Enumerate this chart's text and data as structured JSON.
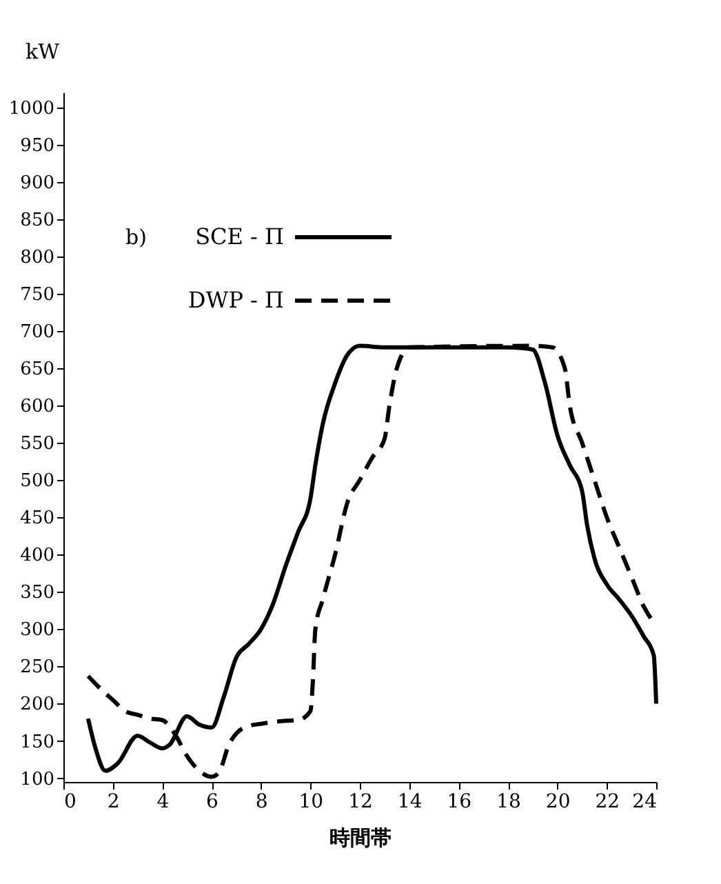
{
  "chart_data": {
    "type": "line",
    "xlabel": "時間帯",
    "ylabel": "kW",
    "annotations": [
      "b)"
    ],
    "xlim": [
      0,
      24
    ],
    "xticks": [
      0,
      2,
      4,
      6,
      8,
      10,
      12,
      14,
      16,
      18,
      20,
      22,
      24
    ],
    "ylim": [
      95,
      1020
    ],
    "yticks": [
      100,
      150,
      200,
      250,
      300,
      350,
      400,
      450,
      500,
      550,
      600,
      650,
      700,
      750,
      800,
      850,
      900,
      950,
      1000
    ],
    "grid": false,
    "legend": "top left",
    "series": [
      {
        "name": "SCE - Π",
        "color": "#000000",
        "line_style": "solid",
        "x": [
          1,
          1.3,
          1.7,
          2.2,
          3,
          3.5,
          4,
          4.3,
          5,
          5.5,
          6,
          6.5,
          7,
          7.5,
          8,
          8.5,
          9,
          9.5,
          10,
          10.2,
          10.5,
          11,
          11.5,
          12,
          13,
          18,
          19,
          19.5,
          20,
          20.5,
          21,
          21.2,
          21.5,
          22,
          22.5,
          23,
          23.5,
          23.9,
          24
        ],
        "values": [
          180,
          140,
          110,
          120,
          157,
          148,
          140,
          145,
          183,
          172,
          168,
          210,
          262,
          280,
          300,
          335,
          385,
          430,
          475,
          520,
          575,
          630,
          668,
          680,
          678,
          678,
          675,
          630,
          560,
          520,
          485,
          440,
          395,
          360,
          340,
          318,
          290,
          265,
          200
        ]
      },
      {
        "name": "DWP - Π",
        "color": "#000000",
        "line_style": "dashed",
        "x": [
          1,
          1.5,
          2,
          2.5,
          3,
          3.5,
          4,
          4.5,
          5,
          5.5,
          6,
          6.3,
          6.7,
          7,
          7.5,
          8,
          9,
          9.5,
          10,
          10.1,
          10.2,
          10.5,
          11,
          11.5,
          12,
          12.5,
          13,
          13.2,
          13.5,
          14,
          19,
          19.8,
          20.3,
          20.5,
          21,
          21.5,
          22,
          22.5,
          23,
          23.5,
          24
        ],
        "values": [
          237,
          220,
          205,
          190,
          185,
          180,
          178,
          160,
          130,
          110,
          102,
          108,
          145,
          160,
          170,
          173,
          177,
          178,
          190,
          230,
          300,
          340,
          400,
          470,
          500,
          530,
          555,
          600,
          650,
          678,
          680,
          678,
          650,
          600,
          550,
          500,
          450,
          410,
          370,
          330,
          305
        ]
      }
    ]
  }
}
